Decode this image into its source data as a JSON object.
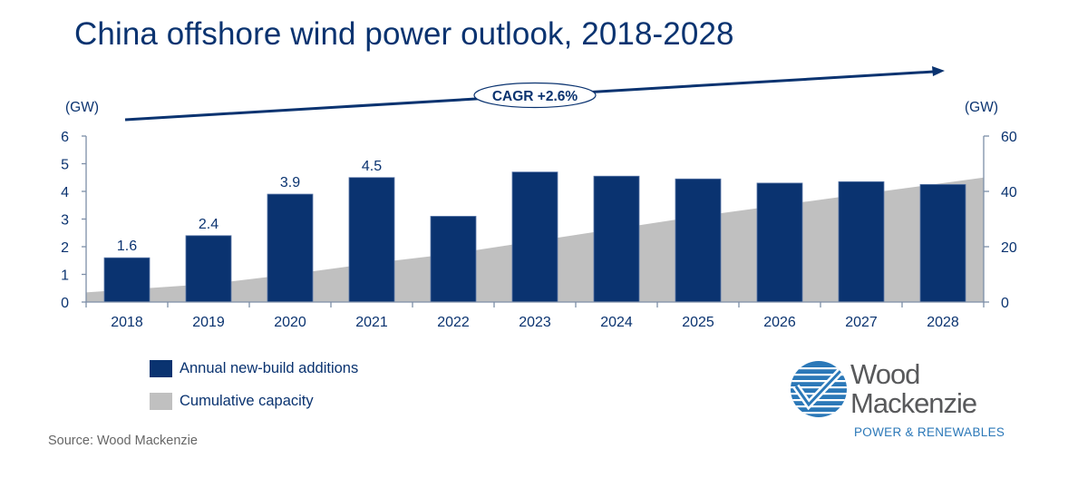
{
  "title": "China offshore wind power outlook, 2018-2028",
  "source": "Source: Wood Mackenzie",
  "colors": {
    "bar": "#0a3370",
    "area": "#c0c0c0",
    "text": "#0a3370",
    "axis": "#7d8ea8"
  },
  "annotation": {
    "label": "CAGR +2.6%"
  },
  "legend": [
    {
      "label": "Annual new-build additions",
      "color": "#0a3370"
    },
    {
      "label": "Cumulative capacity",
      "color": "#c0c0c0"
    }
  ],
  "logo": {
    "line1": "Wood",
    "line2": "Mackenzie",
    "subtitle": "POWER & RENEWABLES",
    "icon": "wood-mackenzie-globe-check-icon"
  },
  "chart_data": {
    "type": "bar",
    "title": "China offshore wind power outlook, 2018-2028",
    "categories": [
      "2018",
      "2019",
      "2020",
      "2021",
      "2022",
      "2023",
      "2024",
      "2025",
      "2026",
      "2027",
      "2028"
    ],
    "series": [
      {
        "name": "Annual new-build additions",
        "type": "bar",
        "axis": "left",
        "values": [
          1.6,
          2.4,
          3.9,
          4.5,
          3.1,
          4.7,
          4.55,
          4.45,
          4.3,
          4.35,
          4.25
        ],
        "data_labels": [
          "1.6",
          "2.4",
          "3.9",
          "4.5",
          null,
          null,
          null,
          null,
          null,
          null,
          null
        ]
      },
      {
        "name": "Cumulative capacity",
        "type": "area",
        "axis": "right",
        "values": [
          4.5,
          6.5,
          10,
          14,
          17.5,
          22,
          26.5,
          31,
          35,
          39,
          43
        ]
      }
    ],
    "y_left": {
      "label": "(GW)",
      "ylim": [
        0,
        6
      ],
      "ticks": [
        "0",
        "1",
        "2",
        "3",
        "4",
        "5",
        "6"
      ]
    },
    "y_right": {
      "label": "(GW)",
      "ylim": [
        0,
        60
      ],
      "ticks": [
        "0",
        "20",
        "40",
        "60"
      ]
    },
    "xlabel": "",
    "grid": false,
    "legend_position": "bottom-left",
    "annotations": [
      {
        "text": "CAGR +2.6%",
        "type": "trend-arrow"
      }
    ]
  }
}
